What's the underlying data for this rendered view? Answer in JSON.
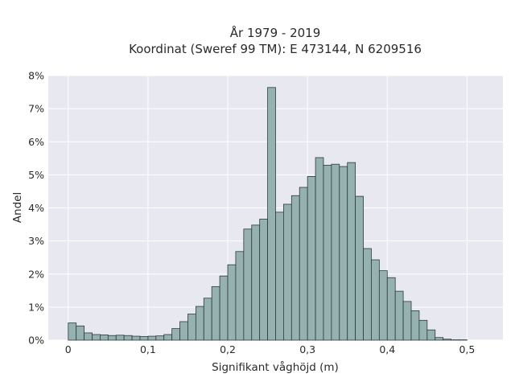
{
  "chart_data": {
    "type": "bar",
    "title_line1": "År 1979 - 2019",
    "title_line2": "Koordinat (Sweref 99 TM): E 473144, N 6209516",
    "xlabel": "Signifikant våghöjd (m)",
    "ylabel": "Andel",
    "xlim": [
      -0.025,
      0.545
    ],
    "ylim": [
      0,
      8
    ],
    "bin_width": 0.01,
    "x_ticks": [
      0,
      0.1,
      0.2,
      0.3,
      0.4,
      0.5
    ],
    "x_tick_labels": [
      "0",
      "0,1",
      "0,2",
      "0,3",
      "0,4",
      "0,5"
    ],
    "y_ticks": [
      0,
      1,
      2,
      3,
      4,
      5,
      6,
      7,
      8
    ],
    "y_tick_labels": [
      "0%",
      "1%",
      "2%",
      "3%",
      "4%",
      "5%",
      "6%",
      "7%",
      "8%"
    ],
    "bin_start": [
      0,
      0.01,
      0.02,
      0.03,
      0.04,
      0.05,
      0.06,
      0.07,
      0.08,
      0.09,
      0.1,
      0.11,
      0.12,
      0.13,
      0.14,
      0.15,
      0.16,
      0.17,
      0.18,
      0.19,
      0.2,
      0.21,
      0.22,
      0.23,
      0.24,
      0.25,
      0.26,
      0.27,
      0.28,
      0.29,
      0.3,
      0.31,
      0.32,
      0.33,
      0.34,
      0.35,
      0.36,
      0.37,
      0.38,
      0.39,
      0.4,
      0.41,
      0.42,
      0.43,
      0.44,
      0.45,
      0.46,
      0.47,
      0.48,
      0.49,
      0.5,
      0.51
    ],
    "values": [
      0.52,
      0.43,
      0.22,
      0.17,
      0.16,
      0.14,
      0.15,
      0.14,
      0.12,
      0.11,
      0.12,
      0.13,
      0.17,
      0.35,
      0.56,
      0.79,
      1.02,
      1.27,
      1.62,
      1.94,
      2.28,
      2.68,
      3.36,
      3.48,
      3.66,
      7.64,
      3.87,
      4.11,
      4.37,
      4.62,
      4.95,
      5.52,
      5.29,
      5.32,
      5.25,
      5.37,
      4.35,
      2.77,
      2.43,
      2.1,
      1.89,
      1.48,
      1.17,
      0.89,
      0.6,
      0.31,
      0.08,
      0.03,
      0.01,
      0.01,
      0.0,
      0.0
    ],
    "colors": {
      "plot_bg": "#e8e8f0",
      "grid": "#ffffff",
      "bar_fill": "#95b1b0",
      "bar_stroke": "#2f3a3a",
      "text": "#2a2a2a"
    }
  }
}
